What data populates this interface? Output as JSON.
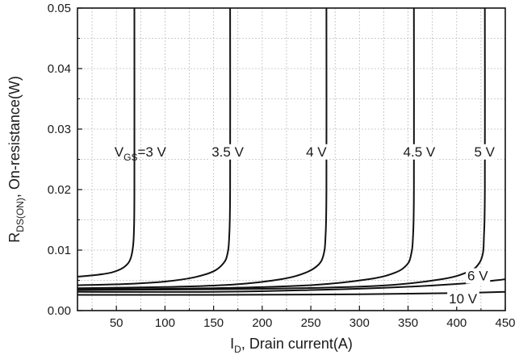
{
  "chart_data": {
    "type": "line",
    "xlabel": {
      "main": "I",
      "sub": "D",
      "rest": ", Drain current(A)"
    },
    "ylabel": {
      "main": "R",
      "sub": "DS(ON)",
      "rest": ", On-resistance(W)"
    },
    "xlim": [
      10,
      450
    ],
    "ylim": [
      0,
      0.05
    ],
    "x_ticks": [
      50,
      100,
      150,
      200,
      250,
      300,
      350,
      400,
      450
    ],
    "x_tick_labels": [
      "50",
      "100",
      "150",
      "200",
      "250",
      "300",
      "350",
      "400",
      "450"
    ],
    "y_ticks": [
      0,
      0.01,
      0.02,
      0.03,
      0.04,
      0.05
    ],
    "y_tick_labels": [
      "0.00",
      "0.01",
      "0.02",
      "0.03",
      "0.04",
      "0.05"
    ],
    "grid": true,
    "line_color": "#111111",
    "grid_color": "#bdbdbd",
    "series": [
      {
        "name": "3 V",
        "label_prefix": "V",
        "label_sub": "GS",
        "label_text": "=3 V",
        "points": [
          [
            10,
            0.0056
          ],
          [
            30,
            0.0059
          ],
          [
            45,
            0.0063
          ],
          [
            55,
            0.0069
          ],
          [
            62,
            0.0078
          ],
          [
            65,
            0.0088
          ],
          [
            67,
            0.0105
          ],
          [
            68,
            0.013
          ],
          [
            68.5,
            0.02
          ],
          [
            68.5,
            0.05
          ]
        ]
      },
      {
        "name": "3.5 V",
        "label_text": "3.5 V",
        "points": [
          [
            10,
            0.0042
          ],
          [
            60,
            0.0044
          ],
          [
            100,
            0.0048
          ],
          [
            130,
            0.0055
          ],
          [
            150,
            0.0065
          ],
          [
            160,
            0.0078
          ],
          [
            164,
            0.0092
          ],
          [
            166,
            0.012
          ],
          [
            167,
            0.02
          ],
          [
            167,
            0.05
          ]
        ]
      },
      {
        "name": "4 V",
        "label_text": "4 V",
        "points": [
          [
            10,
            0.0037
          ],
          [
            100,
            0.0039
          ],
          [
            170,
            0.0043
          ],
          [
            220,
            0.0052
          ],
          [
            245,
            0.0063
          ],
          [
            258,
            0.0076
          ],
          [
            263,
            0.0092
          ],
          [
            265,
            0.012
          ],
          [
            266,
            0.02
          ],
          [
            266,
            0.05
          ]
        ]
      },
      {
        "name": "4.5 V",
        "label_text": "4.5 V",
        "points": [
          [
            10,
            0.0035
          ],
          [
            150,
            0.0037
          ],
          [
            250,
            0.0042
          ],
          [
            310,
            0.0052
          ],
          [
            337,
            0.0063
          ],
          [
            349,
            0.0076
          ],
          [
            353,
            0.0092
          ],
          [
            355,
            0.012
          ],
          [
            356,
            0.02
          ],
          [
            356,
            0.05
          ]
        ]
      },
      {
        "name": "5 V",
        "label_text": "5 V",
        "points": [
          [
            10,
            0.0034
          ],
          [
            200,
            0.0036
          ],
          [
            320,
            0.0041
          ],
          [
            385,
            0.0052
          ],
          [
            413,
            0.0065
          ],
          [
            423,
            0.0078
          ],
          [
            427,
            0.0095
          ],
          [
            428,
            0.012
          ],
          [
            429,
            0.02
          ],
          [
            429,
            0.05
          ]
        ]
      },
      {
        "name": "6 V",
        "label_text": "6 V",
        "points": [
          [
            10,
            0.0031
          ],
          [
            150,
            0.0031
          ],
          [
            250,
            0.0034
          ],
          [
            330,
            0.0038
          ],
          [
            400,
            0.0044
          ],
          [
            440,
            0.005
          ],
          [
            450,
            0.0052
          ]
        ]
      },
      {
        "name": "10 V",
        "label_text": "10 V",
        "points": [
          [
            10,
            0.0026
          ],
          [
            150,
            0.0026
          ],
          [
            300,
            0.0027
          ],
          [
            400,
            0.0029
          ],
          [
            450,
            0.0031
          ]
        ]
      }
    ]
  }
}
